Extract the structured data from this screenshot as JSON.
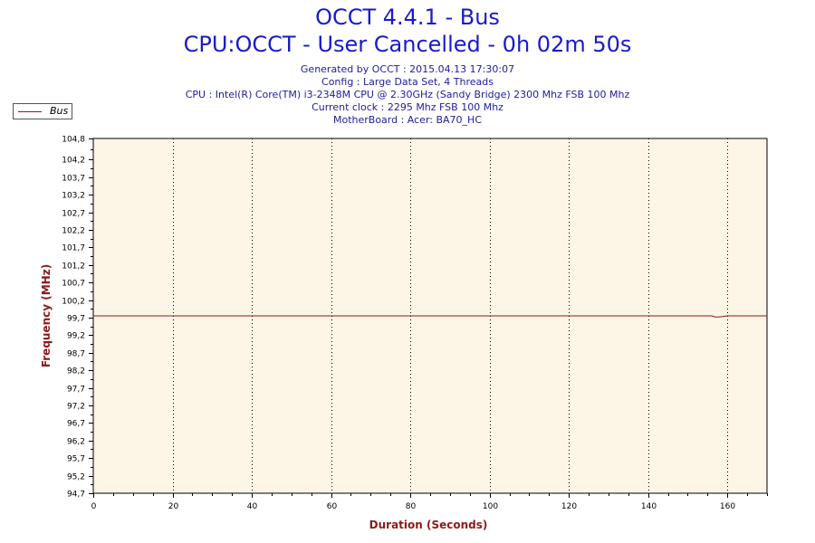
{
  "header": {
    "title": "OCCT 4.4.1 - Bus",
    "subtitle": "CPU:OCCT - User Cancelled - 0h 02m 50s",
    "info": [
      "Generated by OCCT : 2015.04.13 17:30:07",
      "Config : Large Data Set, 4 Threads",
      "CPU : Intel(R) Core(TM) i3-2348M CPU @ 2.30GHz (Sandy Bridge) 2300 Mhz FSB 100 Mhz",
      "Current clock : 2295 Mhz FSB 100 Mhz",
      "MotherBoard : Acer: BA70_HC"
    ]
  },
  "legend": {
    "label": "Bus",
    "placement": "top-left"
  },
  "colors": {
    "series": "#8b1a1a",
    "plot_background": "#fdf5e6",
    "title": "#1a1acc",
    "axis_title": "#8b1a1a"
  },
  "chart_data": {
    "type": "line",
    "xlabel": "Duration (Seconds)",
    "ylabel": "Frequency (MHz)",
    "xlim": [
      0,
      170
    ],
    "ylim": [
      94.7,
      104.8
    ],
    "x_ticks": [
      "0",
      "20",
      "40",
      "60",
      "80",
      "100",
      "120",
      "140",
      "160"
    ],
    "y_ticks": [
      "104,8",
      "104,2",
      "103,7",
      "103,2",
      "102,7",
      "102,2",
      "101,7",
      "101,2",
      "100,7",
      "100,2",
      "99,7",
      "99,2",
      "98,7",
      "98,2",
      "97,7",
      "97,2",
      "96,7",
      "96,2",
      "95,7",
      "95,2",
      "94,7"
    ],
    "grid": {
      "vertical": true,
      "horizontal": false
    },
    "series": [
      {
        "name": "Bus",
        "x": [
          0,
          40,
          80,
          120,
          156,
          157,
          158,
          160,
          170
        ],
        "y": [
          99.75,
          99.75,
          99.75,
          99.75,
          99.75,
          99.72,
          99.72,
          99.75,
          99.75
        ]
      }
    ]
  }
}
